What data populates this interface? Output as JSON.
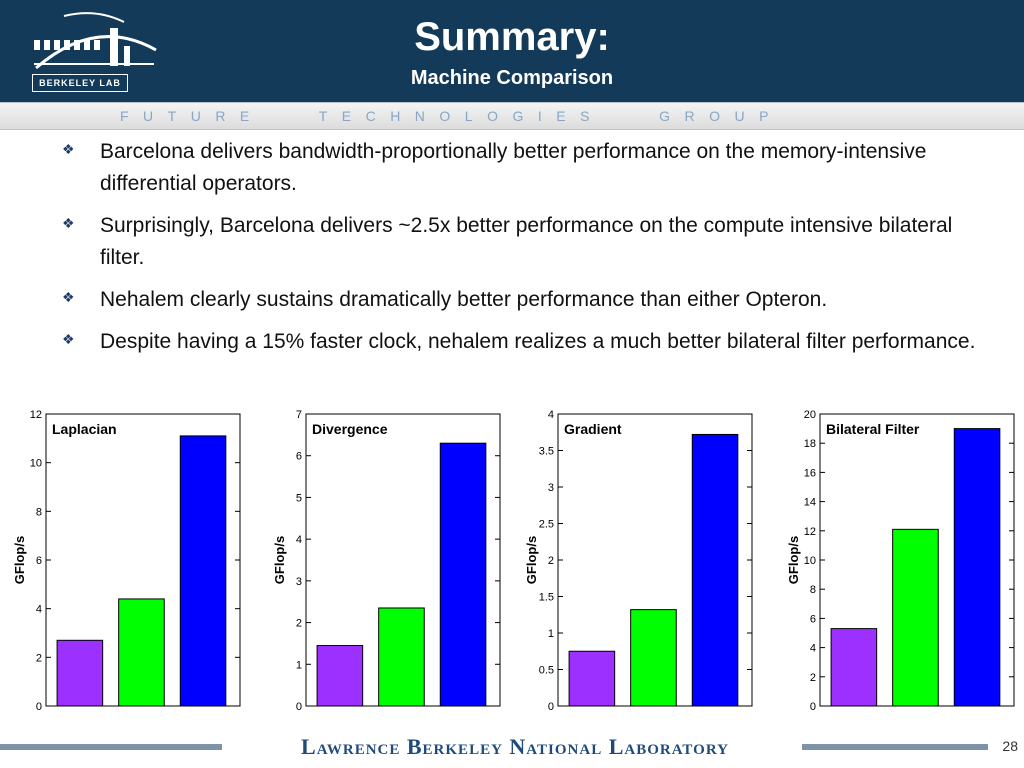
{
  "header": {
    "title": "Summary:",
    "subtitle": "Machine Comparison",
    "logo_text": "BERKELEY LAB"
  },
  "band": {
    "text": "FUTURE   TECHNOLOGIES   GROUP"
  },
  "bullets": [
    "Barcelona delivers bandwidth-proportionally better performance on the memory-intensive differential operators.",
    "Surprisingly, Barcelona delivers ~2.5x better performance on the compute intensive bilateral filter.",
    "Nehalem clearly sustains dramatically better performance than either Opteron.",
    "Despite having a 15% faster clock, nehalem realizes a much better bilateral filter performance."
  ],
  "chart_data": [
    {
      "type": "bar",
      "title": "Laplacian",
      "ylabel": "GFlop/s",
      "xlabel": "",
      "ylim": [
        0,
        12
      ],
      "yticks": [
        0,
        2,
        4,
        6,
        8,
        10,
        12
      ],
      "values": [
        2.7,
        4.4,
        11.1
      ],
      "colors": [
        "#9b30ff",
        "#00ff00",
        "#0000ff"
      ],
      "grid": false
    },
    {
      "type": "bar",
      "title": "Divergence",
      "ylabel": "GFlop/s",
      "xlabel": "",
      "ylim": [
        0,
        7
      ],
      "yticks": [
        0,
        1,
        2,
        3,
        4,
        5,
        6,
        7
      ],
      "values": [
        1.45,
        2.35,
        6.3
      ],
      "colors": [
        "#9b30ff",
        "#00ff00",
        "#0000ff"
      ],
      "grid": false
    },
    {
      "type": "bar",
      "title": "Gradient",
      "ylabel": "GFlop/s",
      "xlabel": "",
      "ylim": [
        0,
        4
      ],
      "yticks": [
        0,
        0.5,
        1,
        1.5,
        2,
        2.5,
        3,
        3.5,
        4
      ],
      "values": [
        0.75,
        1.32,
        3.72
      ],
      "colors": [
        "#9b30ff",
        "#00ff00",
        "#0000ff"
      ],
      "grid": false
    },
    {
      "type": "bar",
      "title": "Bilateral Filter",
      "ylabel": "GFlop/s",
      "xlabel": "",
      "ylim": [
        0,
        20
      ],
      "yticks": [
        0,
        2,
        4,
        6,
        8,
        10,
        12,
        14,
        16,
        18,
        20
      ],
      "values": [
        5.3,
        12.1,
        19.0
      ],
      "colors": [
        "#9b30ff",
        "#00ff00",
        "#0000ff"
      ],
      "grid": false
    }
  ],
  "footer": {
    "lab_name": "Lawrence Berkeley National Laboratory",
    "page_number": "28"
  }
}
